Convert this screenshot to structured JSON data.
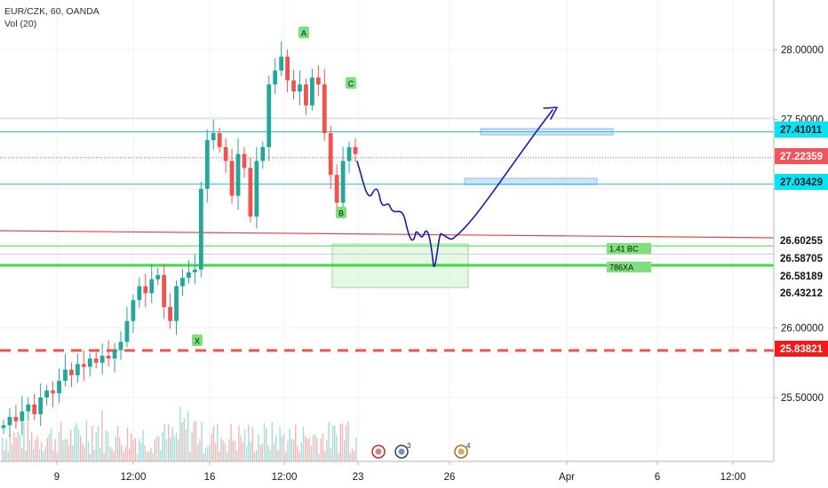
{
  "header": {
    "symbol_line": "EUR/CZK, 60, OANDA",
    "volume_line": "Vol (20)"
  },
  "colors": {
    "up": "#26a69a",
    "down": "#ef5350",
    "vol_up": "#a5dcd7",
    "vol_down": "#f5b5b4",
    "grid": "#eef0f3",
    "axis_text": "#131722",
    "cyan_line": "#26c6da",
    "green_line": "#3cdc3c",
    "red_line": "#ef5350",
    "drawing": "#1a1aa8",
    "label_green": "#7de07d",
    "box_blue": "#cfe3f7",
    "box_green": "#d8f5d8"
  },
  "chart_data": {
    "type": "candlestick",
    "title": "EUR/CZK, 60, OANDA",
    "indicator": "Vol (20)",
    "ylim": [
      25.2,
      28.35
    ],
    "y_ticks": [
      "28.00000",
      "27.50000",
      "26.00000",
      "25.50000"
    ],
    "x_ticks": [
      "9",
      "12:00",
      "16",
      "12:00",
      "23",
      "26",
      "Apr",
      "6",
      "12:00"
    ],
    "grid": true,
    "price_tags": [
      {
        "value": 27.41011,
        "text": "27.41011",
        "style": "cyan"
      },
      {
        "value": 27.22359,
        "text": "27.22359",
        "style": "red"
      },
      {
        "value": 27.03429,
        "text": "27.03429",
        "style": "cyan"
      },
      {
        "value": 26.60255,
        "text": "26.60255",
        "style": "plain"
      },
      {
        "value": 26.58705,
        "text": "26.58705",
        "style": "plain"
      },
      {
        "value": 26.58189,
        "text": "26.58189",
        "style": "plain"
      },
      {
        "value": 26.43212,
        "text": "26.43212",
        "style": "plain"
      },
      {
        "value": 25.83821,
        "text": "25.83821",
        "style": "red"
      }
    ],
    "pattern_points": [
      {
        "label": "X",
        "price": 25.93
      },
      {
        "label": "A",
        "price": 28.12
      },
      {
        "label": "B",
        "price": 26.87
      },
      {
        "label": "C",
        "price": 27.78
      }
    ],
    "zone_labels": [
      "1.41 BC",
      "786XA"
    ],
    "series": [
      {
        "name": "EUR/CZK",
        "close": [
          25.3,
          25.36,
          25.33,
          25.4,
          25.45,
          25.38,
          25.5,
          25.55,
          25.53,
          25.62,
          25.7,
          25.66,
          25.74,
          25.72,
          25.78,
          25.75,
          25.8,
          25.78,
          25.84,
          25.9,
          26.05,
          26.2,
          26.3,
          26.25,
          26.35,
          26.38,
          26.15,
          26.05,
          26.3,
          26.36,
          26.4,
          26.42,
          27.0,
          27.35,
          27.4,
          27.3,
          27.2,
          26.95,
          27.25,
          27.15,
          26.8,
          27.2,
          27.3,
          27.75,
          27.85,
          27.95,
          27.78,
          27.7,
          27.75,
          27.6,
          27.8,
          27.75,
          27.4,
          27.1,
          26.9,
          27.2,
          27.3,
          27.25
        ]
      }
    ]
  }
}
